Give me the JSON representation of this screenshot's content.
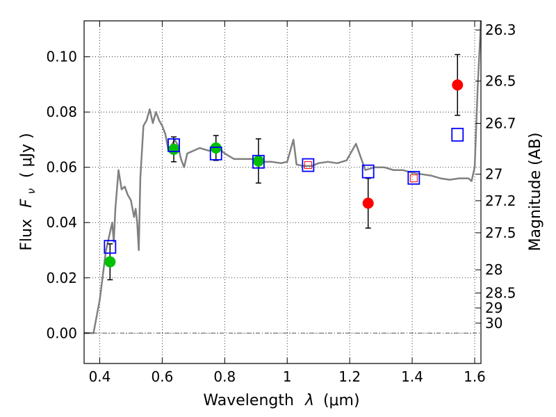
{
  "chart_data": {
    "type": "scatter",
    "xlabel_main": "Wavelength",
    "xlabel_symbol": "λ",
    "xlabel_unit": "(μm)",
    "ylabel_main": "Flux",
    "ylabel_symbol": "F",
    "ylabel_sub": "ν",
    "ylabel_unit": "( μJy )",
    "ylabel_right": "Magnitude (AB)",
    "xlim": [
      0.35,
      1.62
    ],
    "ylim": [
      -0.011,
      0.113
    ],
    "xticks": [
      0.4,
      0.6,
      0.8,
      1.0,
      1.2,
      1.4,
      1.6
    ],
    "xtick_labels": [
      "0.4",
      "0.6",
      "0.8",
      "1",
      "1.2",
      "1.4",
      "1.6"
    ],
    "yticks": [
      0.0,
      0.02,
      0.04,
      0.06,
      0.08,
      0.1
    ],
    "ytick_labels": [
      "0.00",
      "0.02",
      "0.04",
      "0.06",
      "0.08",
      "0.10"
    ],
    "right_ticks": [
      {
        "label": "26.3",
        "flux": 0.1097
      },
      {
        "label": "26.5",
        "flux": 0.0912
      },
      {
        "label": "26.7",
        "flux": 0.0759
      },
      {
        "label": "27",
        "flux": 0.0575
      },
      {
        "label": "27.2",
        "flux": 0.0479
      },
      {
        "label": "27.5",
        "flux": 0.0363
      },
      {
        "label": "28",
        "flux": 0.0229
      },
      {
        "label": "28.5",
        "flux": 0.0145
      },
      {
        "label": "29",
        "flux": 0.0091
      },
      {
        "label": "30",
        "flux": 0.0036
      }
    ],
    "grid": true,
    "colors": {
      "sed": "#808080",
      "observed_green": "#00c000",
      "observed_red": "#ff0000",
      "model_box": "#0000ff",
      "errorbar": "#000000"
    },
    "sed_curve": [
      [
        0.35,
        0.0
      ],
      [
        0.38,
        0.0
      ],
      [
        0.4,
        0.012
      ],
      [
        0.42,
        0.03
      ],
      [
        0.43,
        0.035
      ],
      [
        0.44,
        0.04
      ],
      [
        0.445,
        0.033
      ],
      [
        0.45,
        0.045
      ],
      [
        0.46,
        0.059
      ],
      [
        0.47,
        0.052
      ],
      [
        0.48,
        0.053
      ],
      [
        0.49,
        0.05
      ],
      [
        0.5,
        0.048
      ],
      [
        0.51,
        0.042
      ],
      [
        0.515,
        0.045
      ],
      [
        0.52,
        0.04
      ],
      [
        0.525,
        0.03
      ],
      [
        0.53,
        0.056
      ],
      [
        0.54,
        0.075
      ],
      [
        0.55,
        0.077
      ],
      [
        0.56,
        0.081
      ],
      [
        0.57,
        0.076
      ],
      [
        0.58,
        0.08
      ],
      [
        0.59,
        0.077
      ],
      [
        0.6,
        0.075
      ],
      [
        0.61,
        0.072
      ],
      [
        0.62,
        0.066
      ],
      [
        0.63,
        0.068
      ],
      [
        0.64,
        0.07
      ],
      [
        0.65,
        0.068
      ],
      [
        0.66,
        0.063
      ],
      [
        0.67,
        0.06
      ],
      [
        0.68,
        0.065
      ],
      [
        0.7,
        0.066
      ],
      [
        0.72,
        0.067
      ],
      [
        0.75,
        0.066
      ],
      [
        0.78,
        0.067
      ],
      [
        0.8,
        0.065
      ],
      [
        0.83,
        0.063
      ],
      [
        0.86,
        0.063
      ],
      [
        0.89,
        0.063
      ],
      [
        0.92,
        0.062
      ],
      [
        0.95,
        0.062
      ],
      [
        0.98,
        0.0615
      ],
      [
        1.0,
        0.062
      ],
      [
        1.02,
        0.07
      ],
      [
        1.03,
        0.061
      ],
      [
        1.05,
        0.0605
      ],
      [
        1.08,
        0.0605
      ],
      [
        1.1,
        0.0615
      ],
      [
        1.13,
        0.062
      ],
      [
        1.16,
        0.0615
      ],
      [
        1.19,
        0.0625
      ],
      [
        1.22,
        0.0685
      ],
      [
        1.25,
        0.059
      ],
      [
        1.28,
        0.06
      ],
      [
        1.31,
        0.06
      ],
      [
        1.34,
        0.059
      ],
      [
        1.37,
        0.059
      ],
      [
        1.4,
        0.058
      ],
      [
        1.43,
        0.0575
      ],
      [
        1.46,
        0.057
      ],
      [
        1.49,
        0.056
      ],
      [
        1.52,
        0.0555
      ],
      [
        1.55,
        0.056
      ],
      [
        1.58,
        0.056
      ],
      [
        1.59,
        0.055
      ],
      [
        1.6,
        0.06
      ],
      [
        1.61,
        0.09
      ],
      [
        1.62,
        0.113
      ]
    ],
    "observed": [
      {
        "x": 0.433,
        "y": 0.0258,
        "yerr_low": 0.0065,
        "yerr_high": 0.0065,
        "color": "green"
      },
      {
        "x": 0.637,
        "y": 0.0665,
        "yerr_low": 0.0045,
        "yerr_high": 0.0045,
        "color": "green"
      },
      {
        "x": 0.772,
        "y": 0.067,
        "yerr_low": 0.0045,
        "yerr_high": 0.0045,
        "color": "green"
      },
      {
        "x": 0.908,
        "y": 0.0623,
        "yerr_low": 0.008,
        "yerr_high": 0.008,
        "color": "green"
      },
      {
        "x": 1.259,
        "y": 0.047,
        "yerr_low": 0.009,
        "yerr_high": 0.009,
        "color": "red"
      },
      {
        "x": 1.545,
        "y": 0.0898,
        "yerr_low": 0.011,
        "yerr_high": 0.011,
        "color": "red"
      },
      {
        "x": 1.067,
        "y": 0.0608,
        "yerr_low": 0.0,
        "yerr_high": 0.0,
        "color": "red-small"
      },
      {
        "x": 1.405,
        "y": 0.056,
        "yerr_low": 0.0,
        "yerr_high": 0.0,
        "color": "red-small"
      }
    ],
    "model": [
      {
        "x": 0.433,
        "y": 0.0312
      },
      {
        "x": 0.637,
        "y": 0.068
      },
      {
        "x": 0.772,
        "y": 0.065
      },
      {
        "x": 0.908,
        "y": 0.062
      },
      {
        "x": 1.067,
        "y": 0.0608
      },
      {
        "x": 1.259,
        "y": 0.0585
      },
      {
        "x": 1.405,
        "y": 0.0562
      },
      {
        "x": 1.545,
        "y": 0.0718
      }
    ]
  }
}
